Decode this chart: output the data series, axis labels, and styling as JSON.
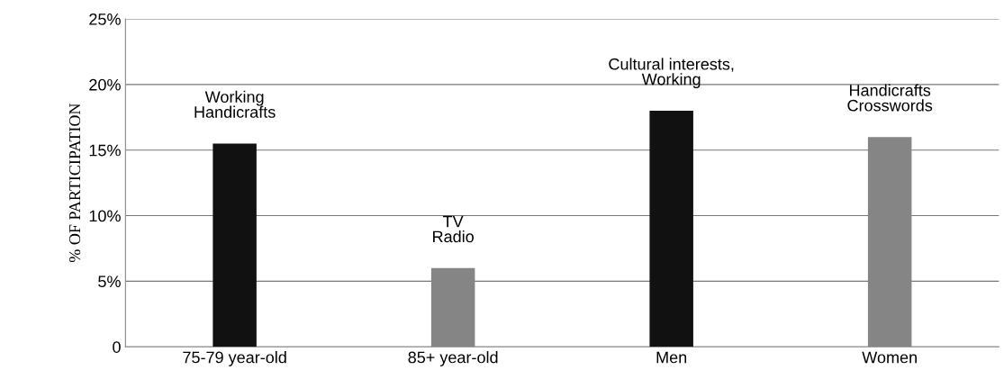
{
  "chart_data": {
    "type": "bar",
    "ylabel": "% OF PARTICIPATION",
    "categories": [
      "75-79 year-old",
      "85+ year-old",
      "Men",
      "Women"
    ],
    "values": [
      15.5,
      6,
      18,
      16
    ],
    "colors": [
      "#111111",
      "#858585",
      "#111111",
      "#858585"
    ],
    "ylim": [
      0,
      25
    ],
    "yticks": [
      0,
      {
        "value": 5,
        "label": "5%"
      },
      {
        "value": 10,
        "label": "10%"
      },
      {
        "value": 15,
        "label": "15%"
      },
      {
        "value": 20,
        "label": "20%"
      },
      {
        "value": 25,
        "label": "25%"
      }
    ],
    "grid": "y",
    "annotations": [
      {
        "text": "Working\nHandicrafts",
        "x": "75-79 year-old",
        "y": 15.5
      },
      {
        "text": "TV\nRadio",
        "x": "85+ year-old",
        "y": 6
      },
      {
        "text": "Cultural interests,\nWorking",
        "x": "Men",
        "y": 18
      },
      {
        "text": "Handicrafts\nCrosswords",
        "x": "Women",
        "y": 16
      }
    ]
  }
}
